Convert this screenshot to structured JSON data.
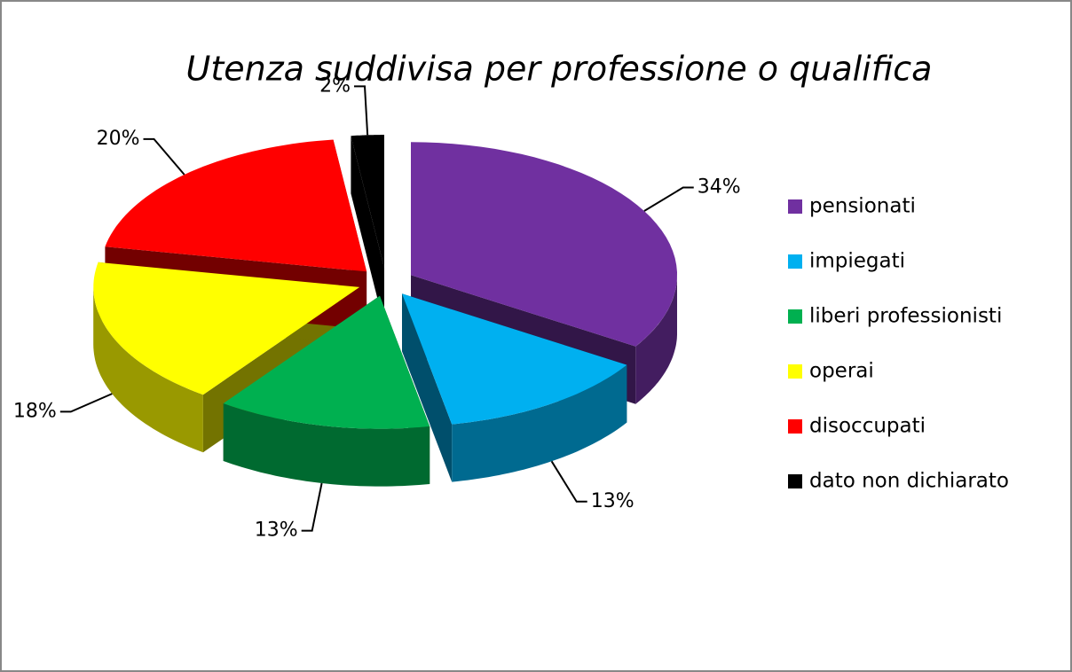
{
  "chart_data": {
    "type": "pie",
    "title": "Utenza suddivisa per professione o qualifica",
    "categories": [
      "pensionati",
      "impiegati",
      "liberi professionisti",
      "operai",
      "disoccupati",
      "dato non dichiarato"
    ],
    "values": [
      34,
      13,
      13,
      18,
      20,
      2
    ],
    "value_labels": [
      "34%",
      "13%",
      "13%",
      "18%",
      "20%",
      "2%"
    ],
    "colors": [
      "#7030a0",
      "#00b0f0",
      "#00b050",
      "#ffff00",
      "#ff0000",
      "#000000"
    ],
    "legend": "right"
  }
}
